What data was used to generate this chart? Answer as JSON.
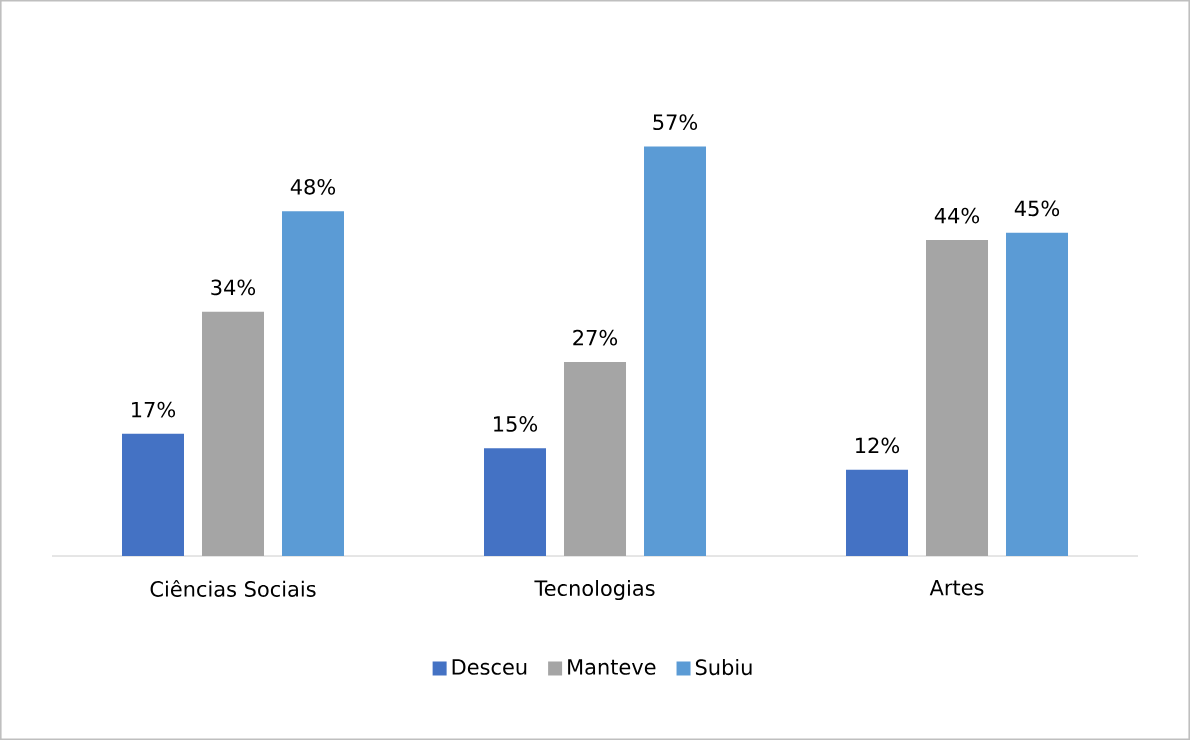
{
  "chart_data": {
    "type": "bar",
    "categories": [
      "Ciências Sociais",
      "Tecnologias",
      "Artes"
    ],
    "series": [
      {
        "name": "Desceu",
        "color": "#4472c4",
        "values": [
          17,
          15,
          12
        ],
        "value_labels": [
          "17%",
          "15%",
          "12%"
        ]
      },
      {
        "name": "Manteve",
        "color": "#a5a5a5",
        "values": [
          34,
          27,
          44
        ],
        "value_labels": [
          "34%",
          "27%",
          "44%"
        ]
      },
      {
        "name": "Subiu",
        "color": "#5b9bd5",
        "values": [
          48,
          57,
          45
        ],
        "value_labels": [
          "48%",
          "57%",
          "45%"
        ]
      }
    ],
    "legend": "bottom"
  }
}
